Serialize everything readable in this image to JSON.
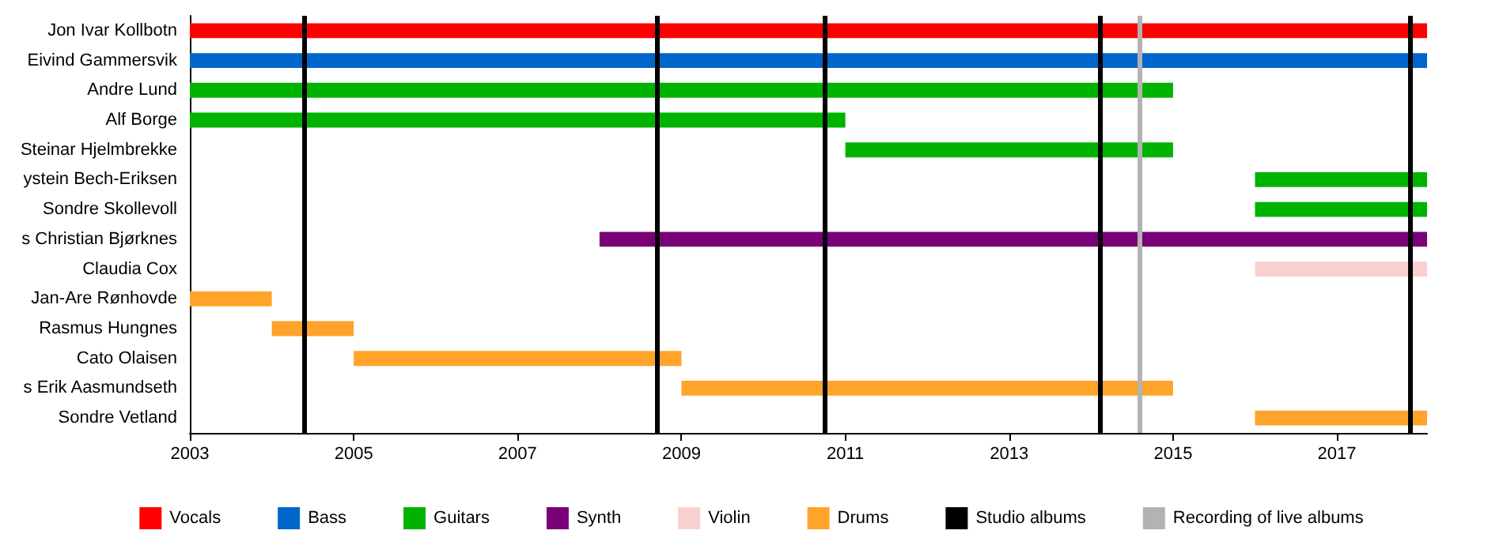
{
  "chart_data": {
    "type": "bar",
    "orientation": "horizontal",
    "legend": "bottom",
    "grid": false,
    "categories": [
      "Jon Ivar Kollbotn",
      "Eivind Gammersvik",
      "Andre Lund",
      "Alf Borge",
      "Steinar Hjelmbrekke",
      "ystein Bech-Eriksen",
      "Sondre Skollevoll",
      "s Christian Bjørknes",
      "Claudia Cox",
      "Jan-Are Rønhovde",
      "Rasmus Hungnes",
      "Cato Olaisen",
      "s Erik Aasmundseth",
      "Sondre Vetland"
    ],
    "series": [
      {
        "name": "Vocals",
        "color": "#ff0000",
        "base": [
          2003,
          null,
          null,
          null,
          null,
          null,
          null,
          null,
          null,
          null,
          null,
          null,
          null,
          null
        ],
        "values": [
          15.1,
          null,
          null,
          null,
          null,
          null,
          null,
          null,
          null,
          null,
          null,
          null,
          null,
          null
        ]
      },
      {
        "name": "Bass",
        "color": "#0066cc",
        "base": [
          null,
          2003,
          null,
          null,
          null,
          null,
          null,
          null,
          null,
          null,
          null,
          null,
          null,
          null
        ],
        "values": [
          null,
          15.1,
          null,
          null,
          null,
          null,
          null,
          null,
          null,
          null,
          null,
          null,
          null,
          null
        ]
      },
      {
        "name": "Guitars",
        "color": "#00b300",
        "base": [
          null,
          null,
          2003,
          2003,
          2011,
          2016,
          2016,
          null,
          null,
          null,
          null,
          null,
          null,
          null
        ],
        "values": [
          null,
          null,
          12,
          8,
          4,
          2.1,
          2.1,
          null,
          null,
          null,
          null,
          null,
          null,
          null
        ]
      },
      {
        "name": "Synth",
        "color": "#7a0077",
        "base": [
          null,
          null,
          null,
          null,
          null,
          null,
          null,
          2008,
          null,
          null,
          null,
          null,
          null,
          null
        ],
        "values": [
          null,
          null,
          null,
          null,
          null,
          null,
          null,
          10.1,
          null,
          null,
          null,
          null,
          null,
          null
        ]
      },
      {
        "name": "Violin",
        "color": "#f9d0d0",
        "base": [
          null,
          null,
          null,
          null,
          null,
          null,
          null,
          null,
          2016,
          null,
          null,
          null,
          null,
          null
        ],
        "values": [
          null,
          null,
          null,
          null,
          null,
          null,
          null,
          null,
          2.1,
          null,
          null,
          null,
          null,
          null
        ]
      },
      {
        "name": "Drums",
        "color": "#ffa32a",
        "base": [
          null,
          null,
          null,
          null,
          null,
          null,
          null,
          null,
          null,
          2003,
          2004,
          2005,
          2009,
          2016
        ],
        "values": [
          null,
          null,
          null,
          null,
          null,
          null,
          null,
          null,
          null,
          1,
          1,
          4,
          6,
          2.1
        ]
      }
    ],
    "ref_lines": [
      {
        "axis": "x",
        "value": 2004.4,
        "label": "Studio albums",
        "color": "#000000"
      },
      {
        "axis": "x",
        "value": 2008.7,
        "color": "#000000"
      },
      {
        "axis": "x",
        "value": 2010.75,
        "color": "#000000"
      },
      {
        "axis": "x",
        "value": 2014.1,
        "color": "#000000"
      },
      {
        "axis": "x",
        "value": 2017.9,
        "color": "#000000"
      },
      {
        "axis": "x",
        "value": 2014.6,
        "label": "Recording of live albums",
        "color": "#b3b3b3"
      }
    ],
    "xlim": [
      2003,
      2018.1
    ],
    "xticks": [
      2003,
      2005,
      2007,
      2009,
      2011,
      2013,
      2015,
      2017
    ]
  }
}
